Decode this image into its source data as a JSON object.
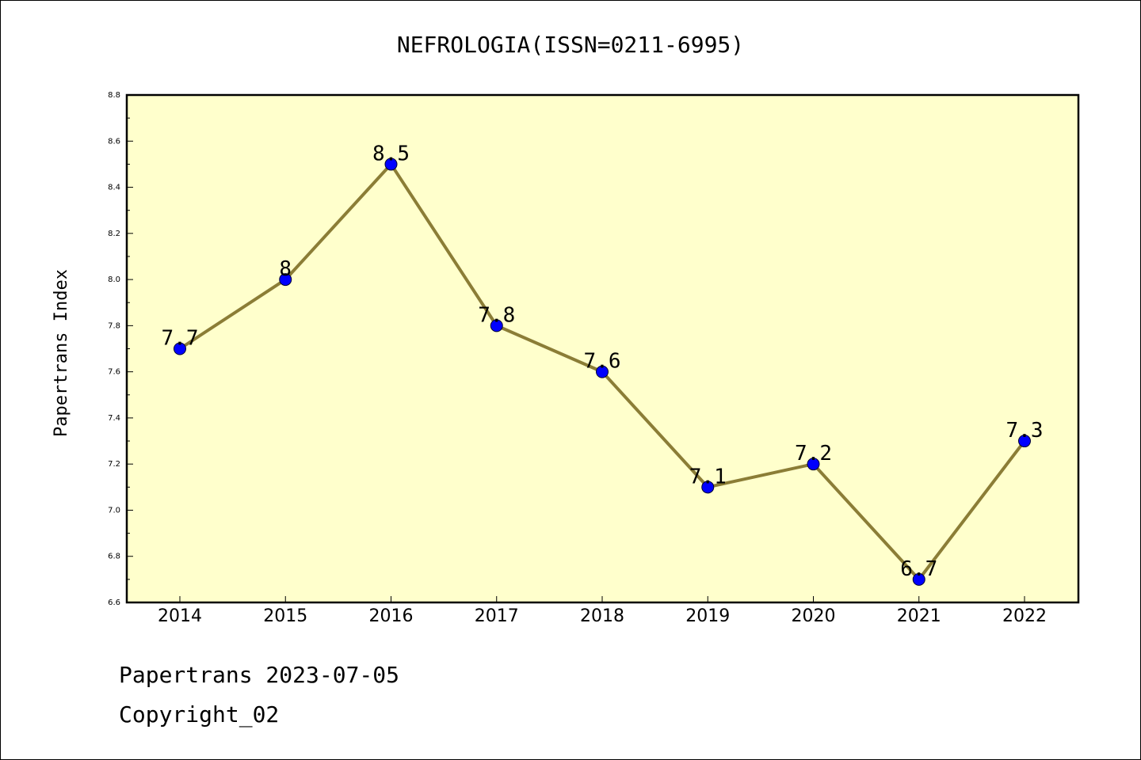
{
  "chart_data": {
    "type": "line",
    "title": "NEFROLOGIA(ISSN=0211-6995)",
    "xlabel": "",
    "ylabel": "Papertrans Index",
    "categories": [
      "2014",
      "2015",
      "2016",
      "2017",
      "2018",
      "2019",
      "2020",
      "2021",
      "2022"
    ],
    "series": [
      {
        "values": [
          7.7,
          8.0,
          8.5,
          7.8,
          7.6,
          7.1,
          7.2,
          6.7,
          7.3
        ],
        "labels": [
          "7.7",
          "8",
          "8.5",
          "7.8",
          "7.6",
          "7.1",
          "7.2",
          "6.7",
          "7.3"
        ]
      }
    ],
    "ylim": [
      6.6,
      8.8
    ],
    "yticks": [
      "6.6",
      "6.8",
      "7.0",
      "7.2",
      "7.4",
      "7.6",
      "7.8",
      "8.0",
      "8.2",
      "8.4",
      "8.6",
      "8.8"
    ],
    "grid": false,
    "colors": {
      "line": "#8b7d36",
      "marker": "#0000ff",
      "plot_background": "#ffffcc"
    }
  },
  "footer": {
    "date_line": "Papertrans 2023-07-05",
    "copyright": "Copyright_02"
  }
}
